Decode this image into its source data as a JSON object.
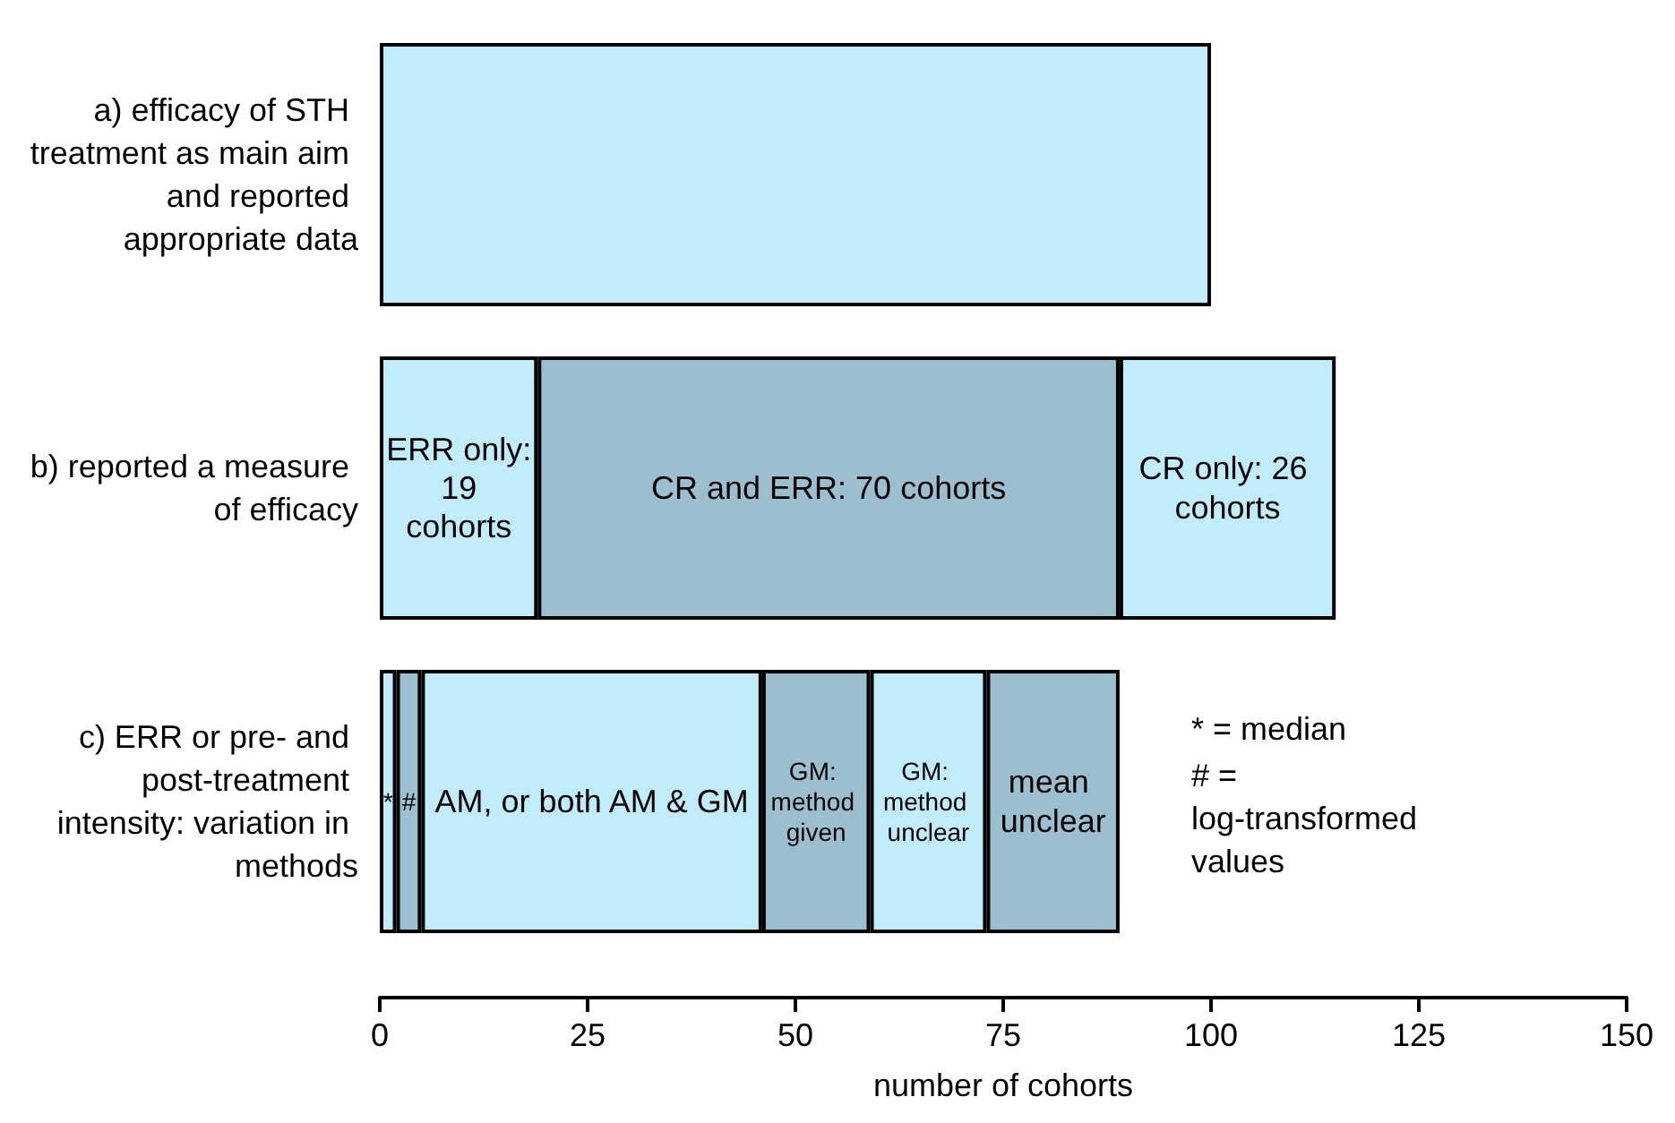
{
  "chart_data": {
    "type": "bar",
    "orientation": "horizontal",
    "stacked": true,
    "legend": false,
    "grid": false,
    "categories": [
      "a) efficacy of STH treatment as main aim and reported appropriate data",
      "b) reported a measure of efficacy",
      "c) ERR or pre- and post-treatment intensity: variation in methods"
    ],
    "xlabel": "number of cohorts",
    "xlim": [
      0,
      150
    ],
    "xticks": [
      0,
      25,
      50,
      75,
      100,
      125,
      150
    ],
    "series": [
      {
        "colors": [
          "#c0ecfc",
          "#c0ecfc",
          "#c0ecfc"
        ],
        "values": [
          100,
          19,
          2
        ],
        "value_labels": [
          null,
          "ERR only: 19 cohorts",
          "*"
        ]
      },
      {
        "colors": [
          null,
          "#9bbfcf",
          "#9bbfcf"
        ],
        "values": [
          null,
          70,
          3
        ],
        "value_labels": [
          null,
          "CR and ERR: 70 cohorts",
          "#"
        ]
      },
      {
        "colors": [
          null,
          "#c0ecfc",
          "#c0ecfc"
        ],
        "values": [
          null,
          26,
          41
        ],
        "value_labels": [
          null,
          "CR only: 26 cohorts",
          "AM, or both AM & GM"
        ]
      },
      {
        "colors": [
          null,
          null,
          "#9bbfcf"
        ],
        "values": [
          null,
          null,
          13
        ],
        "value_labels": [
          null,
          null,
          "GM: method given"
        ]
      },
      {
        "colors": [
          null,
          null,
          "#c0ecfc"
        ],
        "values": [
          null,
          null,
          14
        ],
        "value_labels": [
          null,
          null,
          "GM: method unclear"
        ]
      },
      {
        "colors": [
          null,
          null,
          "#9bbfcf"
        ],
        "values": [
          null,
          null,
          16
        ],
        "value_labels": [
          null,
          null,
          "mean unclear"
        ]
      }
    ],
    "annotations": [
      "* = median",
      "# = log-transformed values"
    ]
  }
}
